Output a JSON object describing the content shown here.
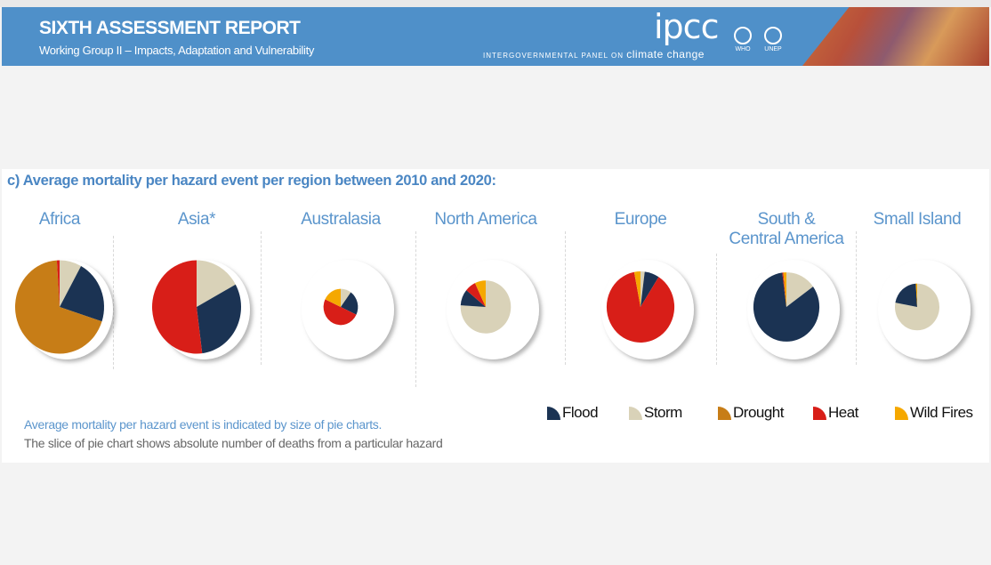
{
  "header": {
    "title": "SIXTH ASSESSMENT REPORT",
    "subtitle": "Working Group II – Impacts, Adaptation and Vulnerability",
    "logo_text": "ipcc",
    "logo_sub_small": "INTERGOVERNMENTAL PANEL ON",
    "logo_sub_large": "climate change",
    "org1": "WHO",
    "org2": "UNEP"
  },
  "chart_data": {
    "type": "pie",
    "title": "c) Average mortality per hazard event per region between 2010 and 2020:",
    "legend": [
      {
        "name": "Flood",
        "color": "#1b3353"
      },
      {
        "name": "Storm",
        "color": "#d9d2b8"
      },
      {
        "name": "Drought",
        "color": "#c77d17"
      },
      {
        "name": "Heat",
        "color": "#d81e18"
      },
      {
        "name": "Wild Fires",
        "color": "#f5a800"
      }
    ],
    "legend_placement": "bottom-right",
    "slice_order": [
      "Storm",
      "Flood",
      "Drought",
      "Heat",
      "Wild Fires"
    ],
    "regions": [
      {
        "name": "Africa",
        "relative_mortality": 1.0,
        "shares": {
          "Storm": 8,
          "Flood": 22,
          "Drought": 69,
          "Heat": 1,
          "Wild Fires": 0
        }
      },
      {
        "name": "Asia*",
        "relative_mortality": 1.0,
        "shares": {
          "Storm": 17,
          "Flood": 31,
          "Drought": 0,
          "Heat": 52,
          "Wild Fires": 0
        }
      },
      {
        "name": "Australasia",
        "relative_mortality": 0.15,
        "shares": {
          "Storm": 10,
          "Flood": 22,
          "Drought": 0,
          "Heat": 50,
          "Wild Fires": 18
        }
      },
      {
        "name": "North America",
        "relative_mortality": 0.32,
        "shares": {
          "Storm": 76,
          "Flood": 10,
          "Drought": 0,
          "Heat": 7,
          "Wild Fires": 7
        }
      },
      {
        "name": "Europe",
        "relative_mortality": 0.58,
        "shares": {
          "Storm": 2,
          "Flood": 7,
          "Drought": 0,
          "Heat": 88,
          "Wild Fires": 3
        }
      },
      {
        "name": "South & Central America",
        "relative_mortality": 0.55,
        "shares": {
          "Storm": 15,
          "Flood": 83,
          "Drought": 0,
          "Heat": 0.5,
          "Wild Fires": 1.5
        }
      },
      {
        "name": "Small Island",
        "relative_mortality": 0.25,
        "shares": {
          "Storm": 78,
          "Flood": 21,
          "Drought": 0,
          "Heat": 0,
          "Wild Fires": 1
        }
      }
    ],
    "region_labels": [
      "Africa",
      "Asia*",
      "Australasia",
      "North America",
      "Europe",
      "South &\nCentral America",
      "Small Island"
    ],
    "notes": [
      "Average mortality per hazard event is indicated by size of pie charts.",
      "The slice of pie chart shows absolute number of deaths from a particular hazard"
    ]
  }
}
